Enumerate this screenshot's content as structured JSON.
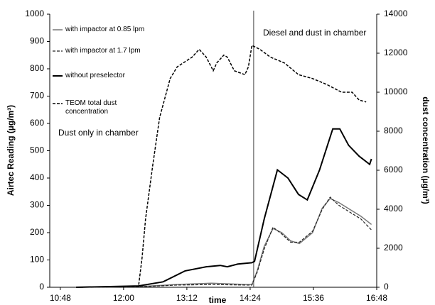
{
  "chart_data": {
    "type": "line",
    "x_label": "time",
    "y_label": "Airtec Reading (µg/m³)",
    "y2_label": "dust concentration (µg/m³)",
    "annotations": [
      "Diesel and dust in chamber",
      "Dust only in chamber"
    ],
    "annotation_line_x": 868,
    "xlim": [
      636,
      1008
    ],
    "xticks": [
      {
        "value": 648,
        "label": "10:48"
      },
      {
        "value": 720,
        "label": "12:00"
      },
      {
        "value": 792,
        "label": "13:12"
      },
      {
        "value": 864,
        "label": "14:24"
      },
      {
        "value": 936,
        "label": "15:36"
      },
      {
        "value": 1008,
        "label": "16:48"
      }
    ],
    "ylim": [
      0,
      1000
    ],
    "yticks": [
      0,
      100,
      200,
      300,
      400,
      500,
      600,
      700,
      800,
      900,
      1000
    ],
    "y2lim": [
      0,
      14000
    ],
    "y2ticks": [
      0,
      2000,
      4000,
      6000,
      8000,
      10000,
      12000,
      14000
    ],
    "series": [
      {
        "name": "with impactor at 0.85 lpm",
        "color": "#777777",
        "style": "solid",
        "width": 1.5,
        "x": [
          666,
          740,
          780,
          820,
          860,
          866,
          872,
          880,
          890,
          900,
          910,
          920,
          935,
          946,
          955,
          965,
          975,
          990,
          1002
        ],
        "values": [
          0,
          3,
          10,
          15,
          10,
          10,
          60,
          150,
          215,
          200,
          170,
          160,
          200,
          290,
          325,
          310,
          290,
          260,
          230
        ]
      },
      {
        "name": "with impactor at 1.7 lpm",
        "color": "#222222",
        "style": "dashed",
        "width": 1.2,
        "x": [
          666,
          740,
          780,
          820,
          860,
          866,
          872,
          880,
          890,
          900,
          910,
          920,
          935,
          946,
          955,
          965,
          975,
          990,
          1002
        ],
        "values": [
          0,
          2,
          8,
          10,
          8,
          8,
          55,
          140,
          220,
          195,
          165,
          165,
          205,
          285,
          330,
          300,
          280,
          250,
          210
        ]
      },
      {
        "name": "without preselector",
        "color": "#000000",
        "style": "solid",
        "width": 2,
        "x": [
          666,
          737,
          765,
          790,
          814,
          830,
          838,
          850,
          866,
          869,
          880,
          895,
          907,
          919,
          929,
          943,
          958,
          966,
          976,
          988,
          1000,
          1002
        ],
        "values": [
          0,
          5,
          20,
          60,
          75,
          80,
          75,
          85,
          90,
          95,
          250,
          430,
          400,
          340,
          320,
          430,
          580,
          580,
          520,
          480,
          450,
          470
        ]
      },
      {
        "name": "TEOM total dust concentration",
        "color": "#000000",
        "style": "dashed",
        "width": 1.5,
        "axis": "y2",
        "x": [
          666,
          737,
          741,
          745,
          753,
          761,
          773,
          781,
          798,
          806,
          814,
          822,
          826,
          834,
          838,
          846,
          858,
          862,
          866,
          875,
          887,
          903,
          919,
          935,
          951,
          968,
          980,
          988,
          996
        ],
        "values": [
          0,
          50,
          1500,
          3500,
          6200,
          8700,
          10700,
          11300,
          11800,
          12200,
          11800,
          11100,
          11500,
          11900,
          11800,
          11100,
          10900,
          11300,
          12400,
          12200,
          11800,
          11500,
          10900,
          10700,
          10400,
          10000,
          10000,
          9600,
          9500
        ]
      }
    ]
  }
}
